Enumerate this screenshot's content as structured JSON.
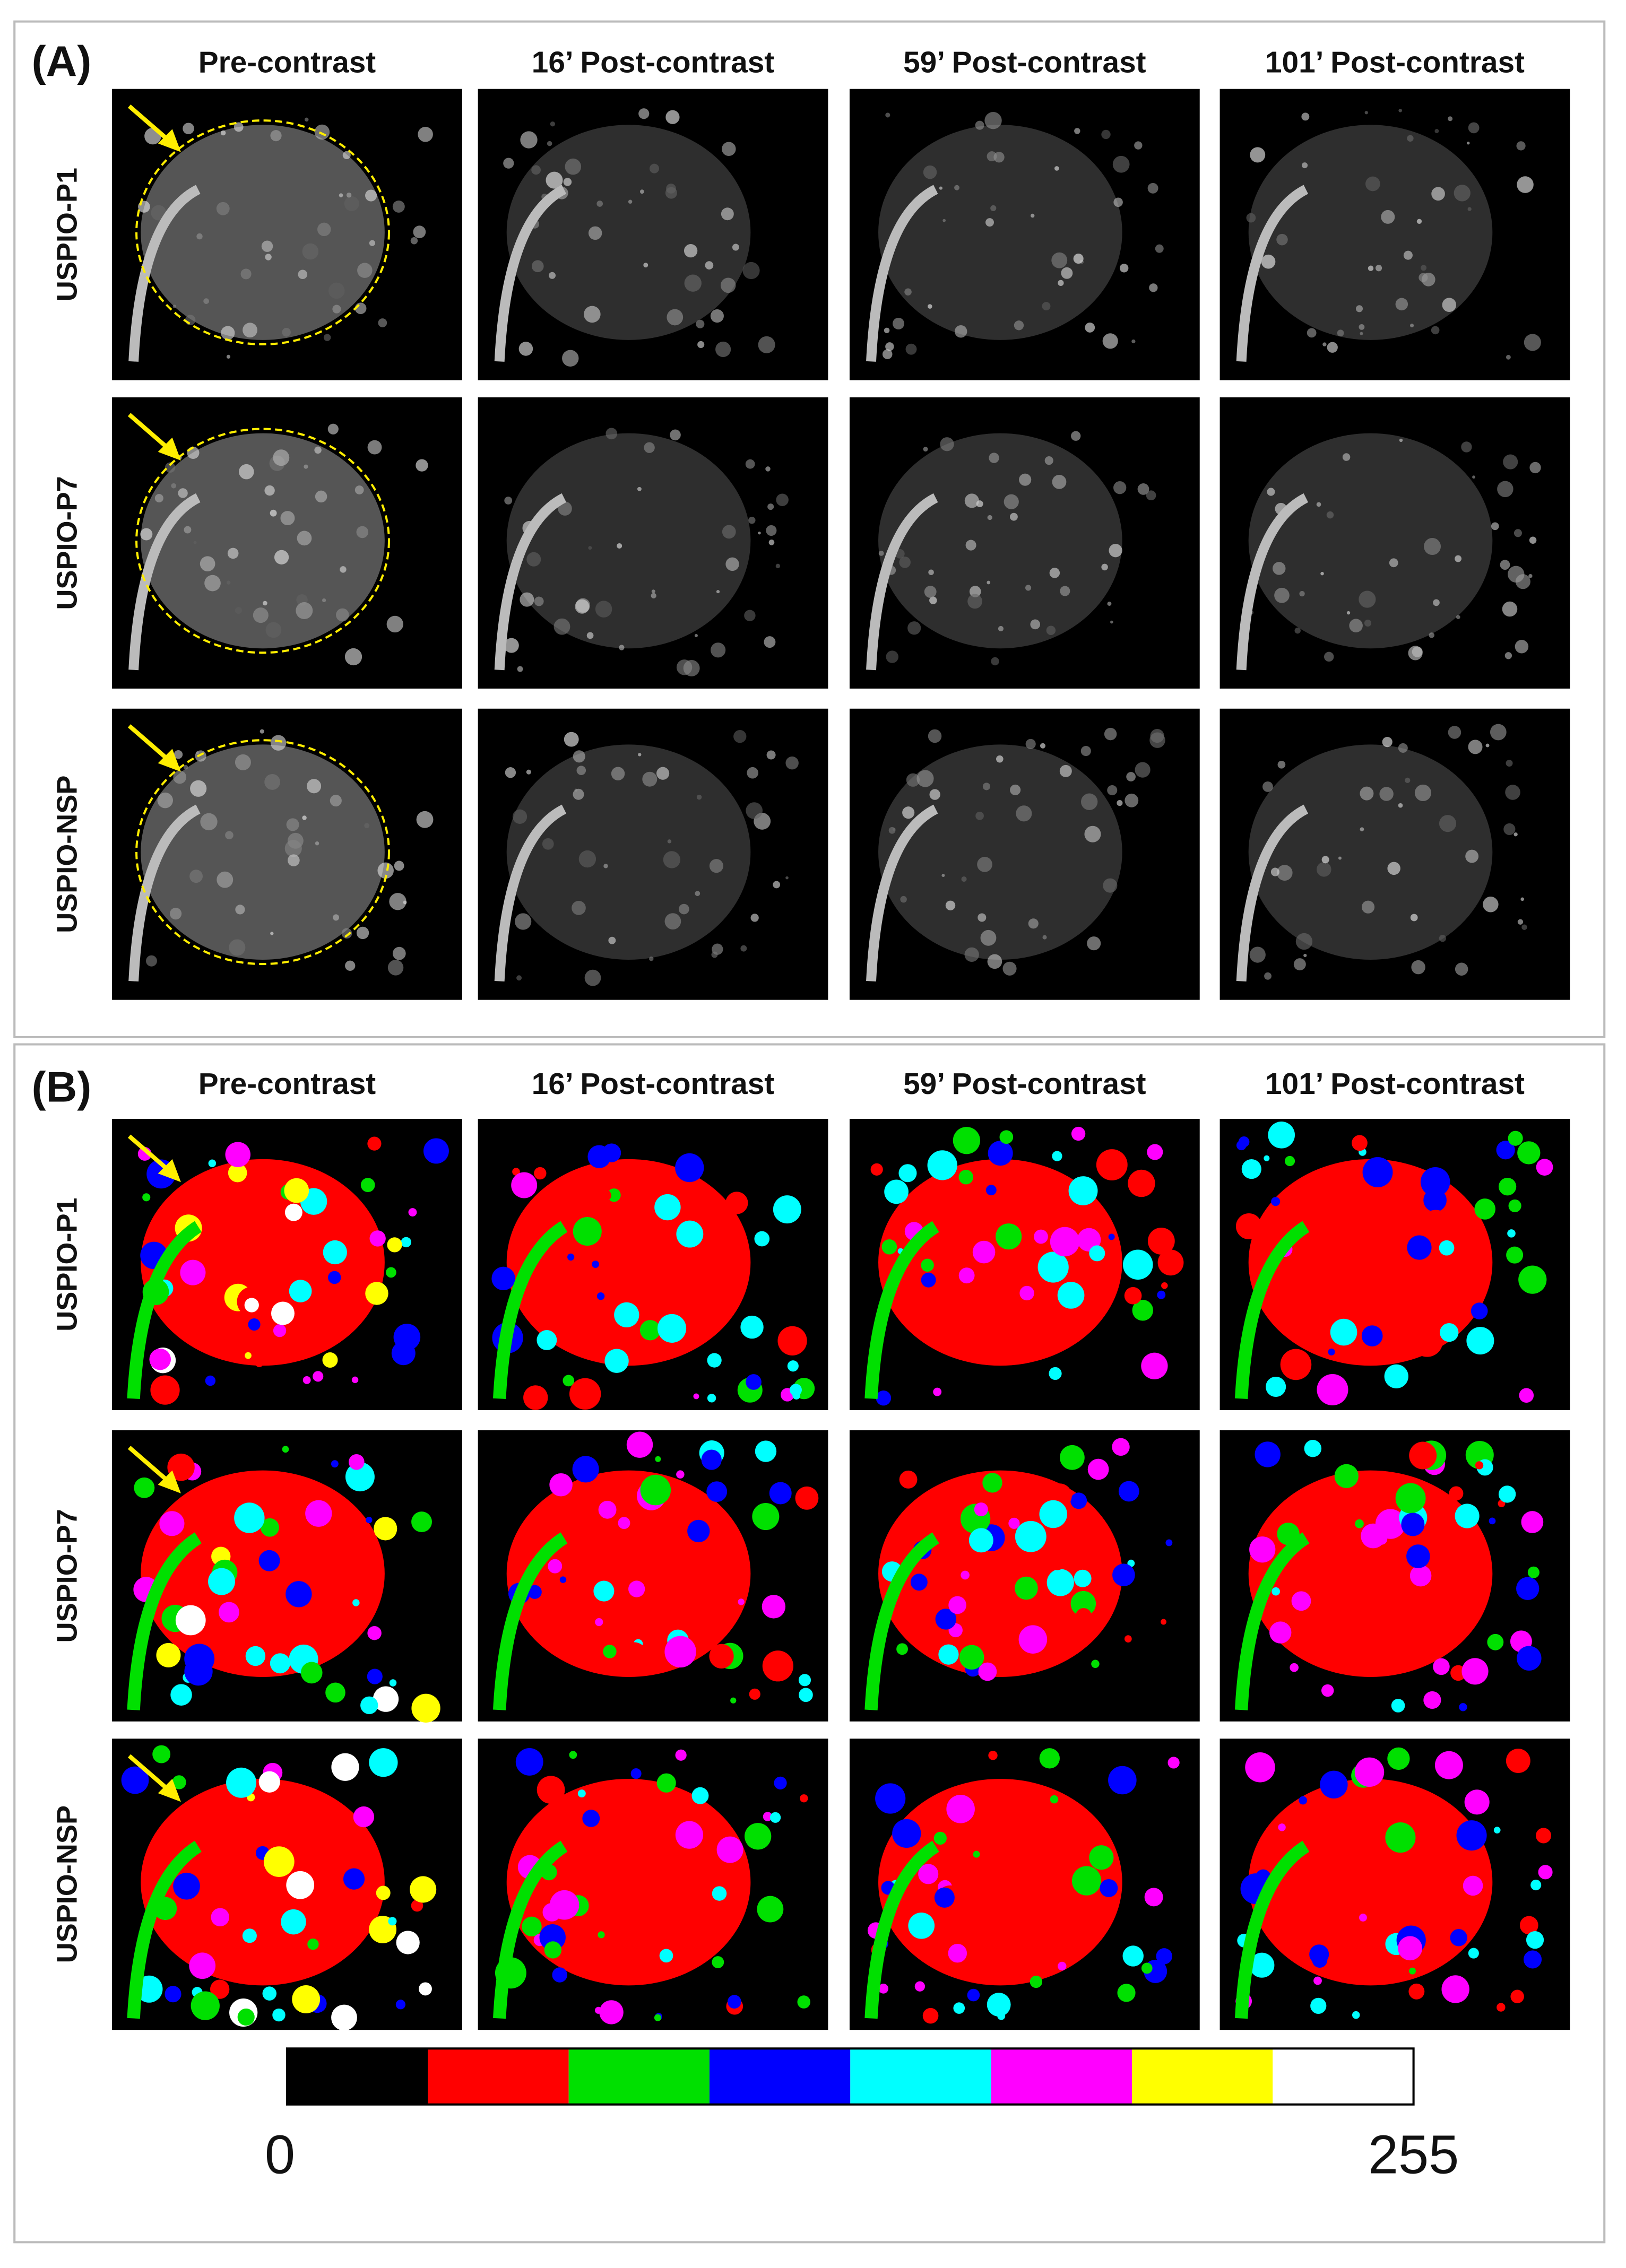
{
  "panels": [
    {
      "label": "(A)",
      "columns": [
        "Pre-contrast",
        "16’ Post-contrast",
        "59’ Post-contrast",
        "101’ Post-contrast"
      ],
      "rows": [
        "USPIO-P1",
        "USPIO-P7",
        "USPIO-NSP"
      ]
    },
    {
      "label": "(B)",
      "columns": [
        "Pre-contrast",
        "16’ Post-contrast",
        "59’ Post-contrast",
        "101’ Post-contrast"
      ],
      "rows": [
        "USPIO-P1",
        "USPIO-P7",
        "USPIO-NSP"
      ]
    }
  ],
  "colorbar": {
    "colors": [
      "#000000",
      "#ff0000",
      "#00e000",
      "#0000ff",
      "#00ffff",
      "#ff00ff",
      "#ffff00",
      "#ffffff"
    ],
    "labels": [
      "0",
      "255"
    ]
  }
}
